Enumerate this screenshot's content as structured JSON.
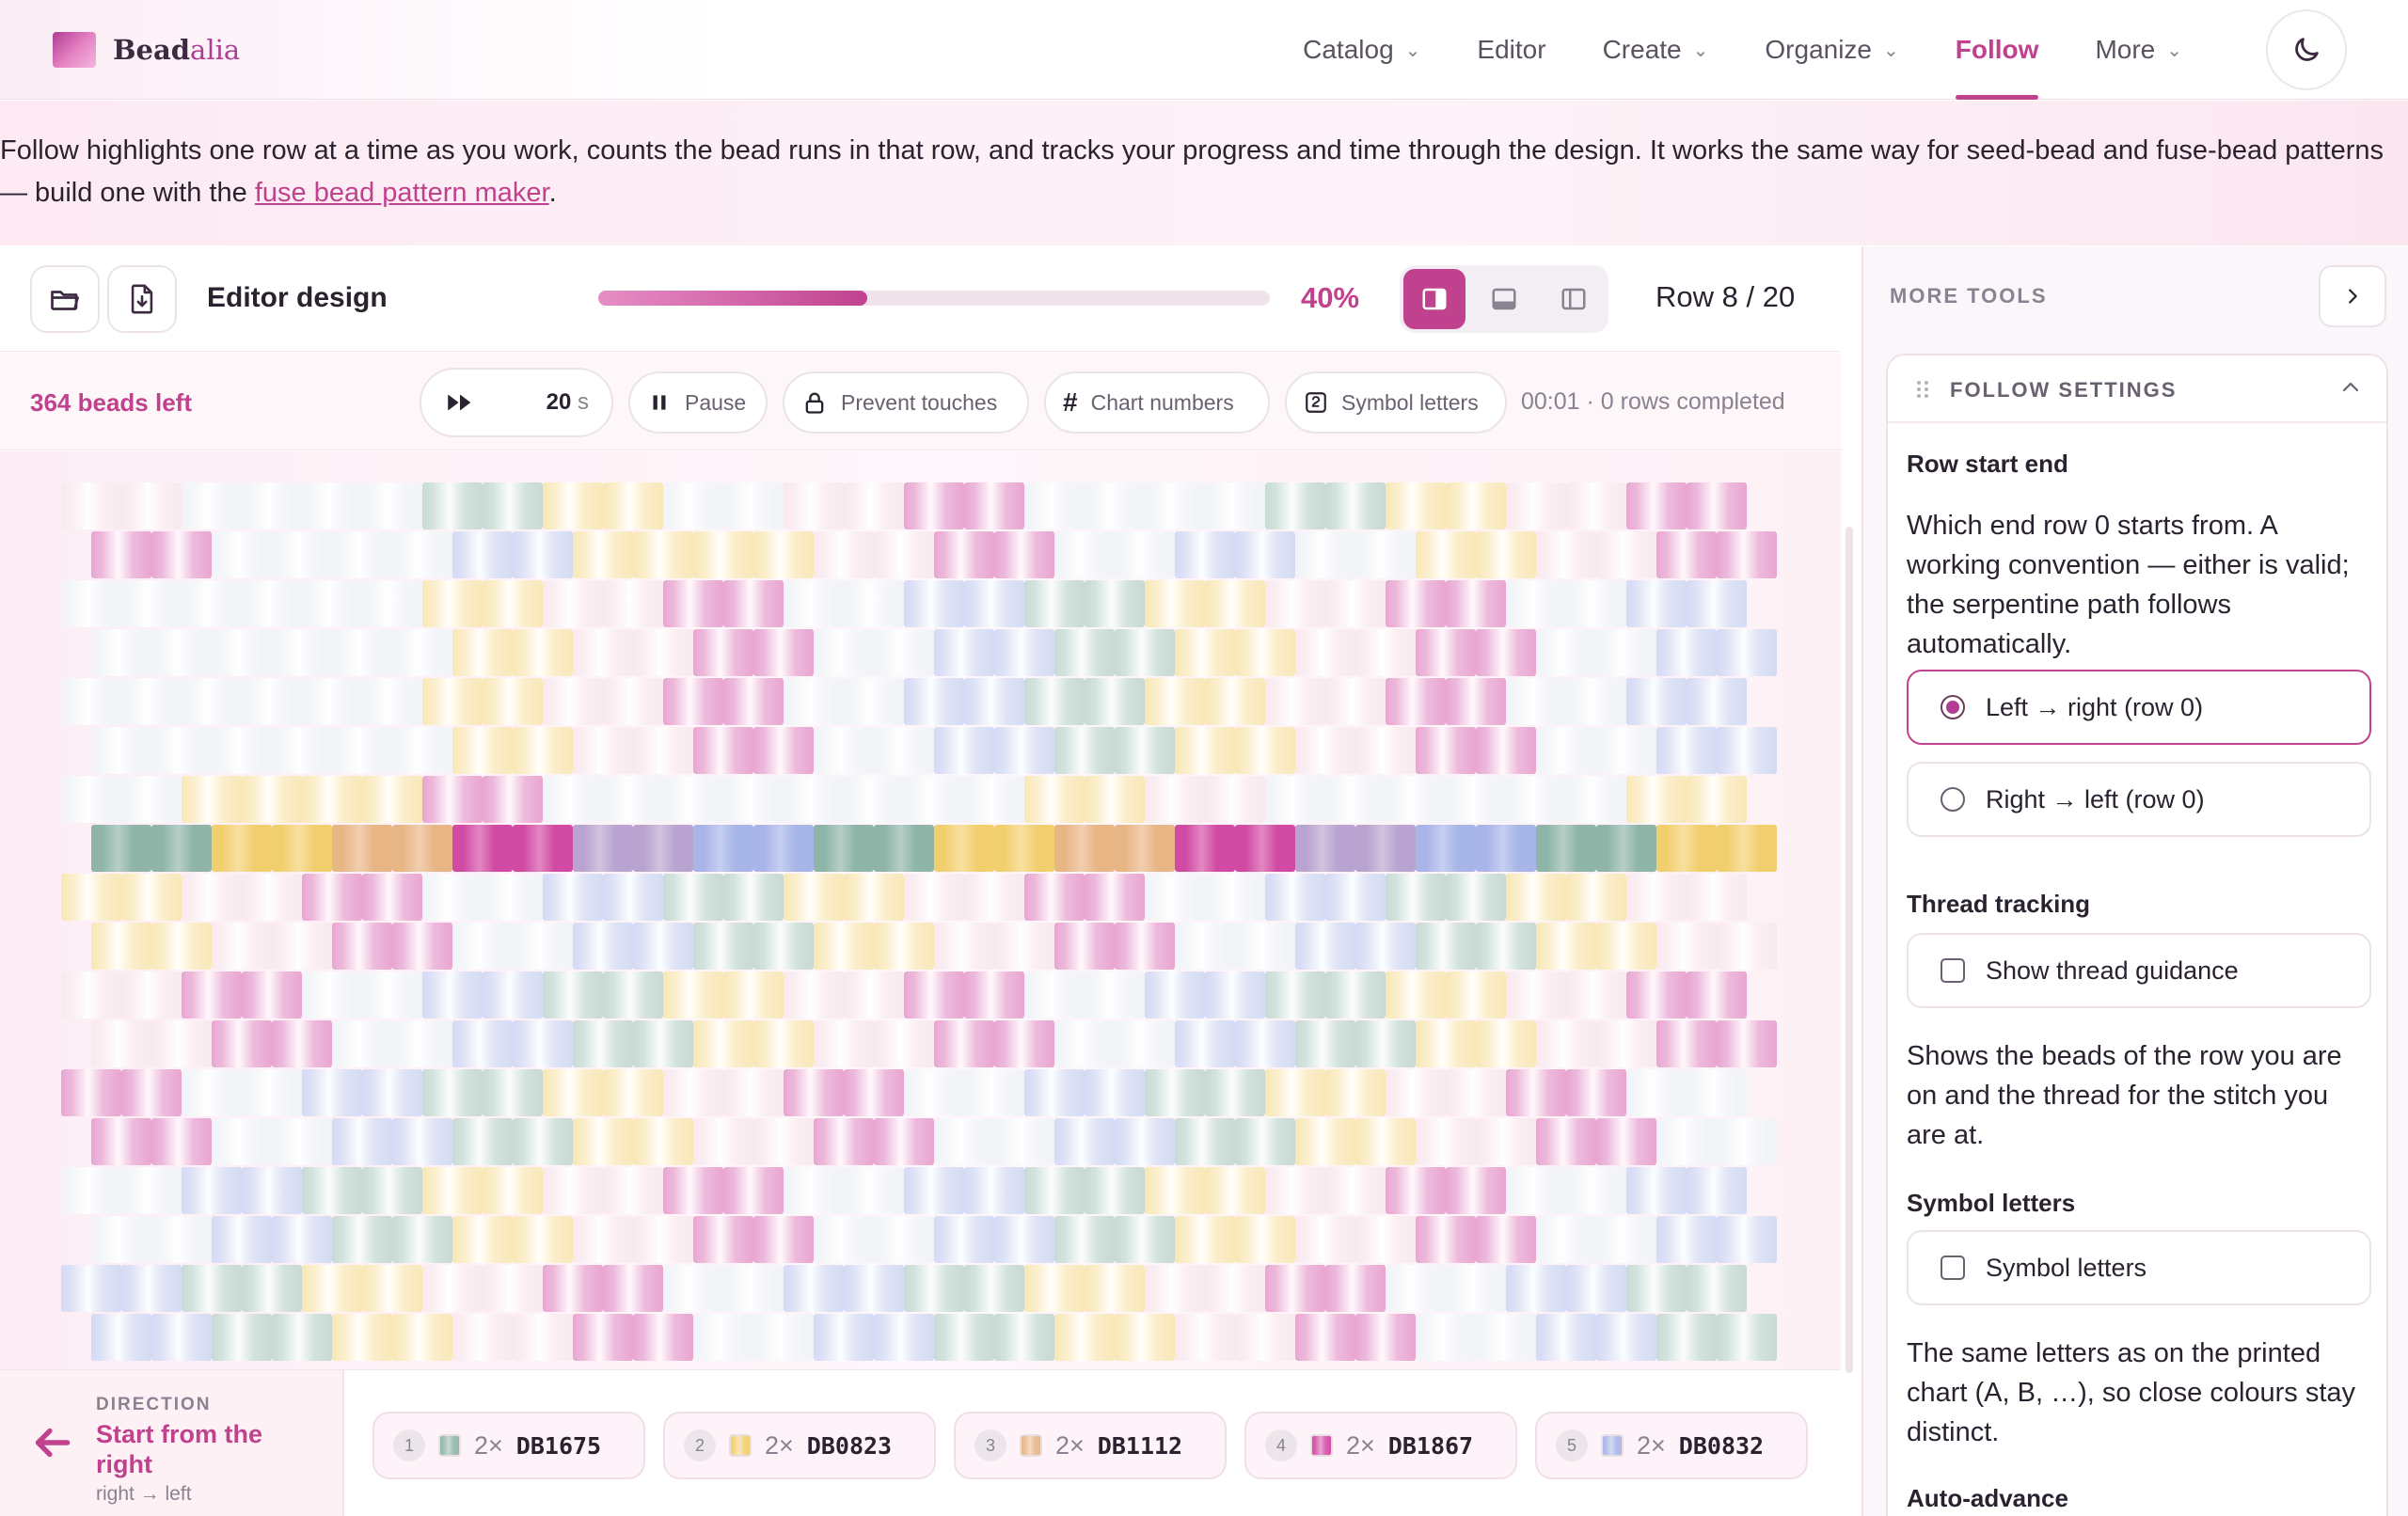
{
  "nav": {
    "brand_bold": "Bead",
    "brand_rest": "alia",
    "items": [
      {
        "label": "Catalog",
        "dropdown": true
      },
      {
        "label": "Editor",
        "dropdown": false
      },
      {
        "label": "Create",
        "dropdown": true
      },
      {
        "label": "Organize",
        "dropdown": true
      },
      {
        "label": "Follow",
        "dropdown": false,
        "active": true
      },
      {
        "label": "More",
        "dropdown": true
      }
    ],
    "theme_icon": "moon-icon"
  },
  "intro": {
    "text_before": "Follow highlights one row at a time as you work, counts the bead runs in that row, and tracks your progress and time through the design. It works the same way for seed-bead and fuse-bead patterns — build one with the ",
    "link_text": "fuse bead pattern maker",
    "text_after": "."
  },
  "toolbar": {
    "open_icon": "folder-open-icon",
    "export_icon": "file-download-icon",
    "design_title": "Editor design",
    "progress": 0.4,
    "progress_label": "40%",
    "row_indicator": "Row 8 / 20"
  },
  "subbar": {
    "beads_left": "364 beads left",
    "play_icon": "fast-forward-icon",
    "interval_value": "20",
    "interval_unit": "s",
    "pause_label": "Pause",
    "prevent_label": "Prevent touches",
    "chart_numbers_label": "Chart numbers",
    "symbol_letters_label": "Symbol letters",
    "session": "00:01 · 0 rows completed"
  },
  "pattern": {
    "palette": [
      "#8fb5a8",
      "#f2cf6e",
      "#e8b585",
      "#d14aa3",
      "#a8b5e8",
      "#b9a3d0",
      "#f2d3dc",
      "#e3e6f0"
    ],
    "active_row_index": 7,
    "active_row_pattern": [
      0,
      0,
      1,
      1,
      2,
      2,
      3,
      3,
      5,
      5,
      4,
      4,
      0,
      0,
      1,
      1,
      2,
      2,
      3,
      3,
      5,
      5,
      4,
      4,
      0,
      0,
      1,
      1
    ],
    "rows": [
      [
        6,
        6,
        7,
        7,
        7,
        7,
        0,
        0,
        1,
        1,
        7,
        7,
        6,
        6,
        3,
        3,
        7,
        7,
        7,
        7,
        0,
        0,
        1,
        1,
        6,
        6,
        3,
        3
      ],
      [
        3,
        3,
        7,
        7,
        7,
        7,
        4,
        4,
        1,
        1,
        1,
        1,
        6,
        6,
        3,
        3,
        7,
        7,
        4,
        4,
        7,
        7,
        1,
        1,
        6,
        6,
        3,
        3
      ],
      [
        7,
        7,
        7,
        7,
        7,
        7,
        1,
        1,
        6,
        6,
        3,
        3,
        7,
        7,
        4,
        4,
        0,
        0,
        1,
        1,
        6,
        6,
        3,
        3,
        7,
        7,
        4,
        4
      ],
      [
        7,
        7,
        7,
        7,
        7,
        7,
        1,
        1,
        6,
        6,
        3,
        3,
        7,
        7,
        4,
        4,
        0,
        0,
        1,
        1,
        6,
        6,
        3,
        3,
        7,
        7,
        4,
        4
      ],
      [
        7,
        7,
        7,
        7,
        7,
        7,
        1,
        1,
        6,
        6,
        3,
        3,
        7,
        7,
        4,
        4,
        0,
        0,
        1,
        1,
        6,
        6,
        3,
        3,
        7,
        7,
        4,
        4
      ],
      [
        7,
        7,
        7,
        7,
        7,
        7,
        1,
        1,
        6,
        6,
        3,
        3,
        7,
        7,
        4,
        4,
        0,
        0,
        1,
        1,
        6,
        6,
        3,
        3,
        7,
        7,
        4,
        4
      ],
      [
        7,
        7,
        1,
        1,
        1,
        1,
        3,
        3,
        7,
        7,
        7,
        7,
        7,
        7,
        7,
        7,
        1,
        1,
        6,
        6,
        7,
        7,
        7,
        7,
        7,
        7,
        1,
        1
      ],
      [
        0,
        0,
        1,
        1,
        2,
        2,
        3,
        3,
        5,
        5,
        4,
        4,
        0,
        0,
        1,
        1,
        2,
        2,
        3,
        3,
        5,
        5,
        4,
        4,
        0,
        0,
        1,
        1
      ],
      [
        1,
        1,
        6,
        6,
        3,
        3,
        7,
        7,
        4,
        4,
        0,
        0,
        1,
        1,
        6,
        6,
        3,
        3,
        7,
        7,
        4,
        4,
        0,
        0,
        1,
        1,
        6,
        6
      ],
      [
        1,
        1,
        6,
        6,
        3,
        3,
        7,
        7,
        4,
        4,
        0,
        0,
        1,
        1,
        6,
        6,
        3,
        3,
        7,
        7,
        4,
        4,
        0,
        0,
        1,
        1,
        6,
        6
      ],
      [
        6,
        6,
        3,
        3,
        7,
        7,
        4,
        4,
        0,
        0,
        1,
        1,
        6,
        6,
        3,
        3,
        7,
        7,
        4,
        4,
        0,
        0,
        1,
        1,
        6,
        6,
        3,
        3
      ],
      [
        6,
        6,
        3,
        3,
        7,
        7,
        4,
        4,
        0,
        0,
        1,
        1,
        6,
        6,
        3,
        3,
        7,
        7,
        4,
        4,
        0,
        0,
        1,
        1,
        6,
        6,
        3,
        3
      ],
      [
        3,
        3,
        7,
        7,
        4,
        4,
        0,
        0,
        1,
        1,
        6,
        6,
        3,
        3,
        7,
        7,
        4,
        4,
        0,
        0,
        1,
        1,
        6,
        6,
        3,
        3,
        7,
        7
      ],
      [
        3,
        3,
        7,
        7,
        4,
        4,
        0,
        0,
        1,
        1,
        6,
        6,
        3,
        3,
        7,
        7,
        4,
        4,
        0,
        0,
        1,
        1,
        6,
        6,
        3,
        3,
        7,
        7
      ],
      [
        7,
        7,
        4,
        4,
        0,
        0,
        1,
        1,
        6,
        6,
        3,
        3,
        7,
        7,
        4,
        4,
        0,
        0,
        1,
        1,
        6,
        6,
        3,
        3,
        7,
        7,
        4,
        4
      ],
      [
        7,
        7,
        4,
        4,
        0,
        0,
        1,
        1,
        6,
        6,
        3,
        3,
        7,
        7,
        4,
        4,
        0,
        0,
        1,
        1,
        6,
        6,
        3,
        3,
        7,
        7,
        4,
        4
      ],
      [
        4,
        4,
        0,
        0,
        1,
        1,
        6,
        6,
        3,
        3,
        7,
        7,
        4,
        4,
        0,
        0,
        1,
        1,
        6,
        6,
        3,
        3,
        7,
        7,
        4,
        4,
        0,
        0
      ],
      [
        4,
        4,
        0,
        0,
        1,
        1,
        6,
        6,
        3,
        3,
        7,
        7,
        4,
        4,
        0,
        0,
        1,
        1,
        6,
        6,
        3,
        3,
        7,
        7,
        4,
        4,
        0,
        0
      ]
    ]
  },
  "direction": {
    "kicker": "DIRECTION",
    "title": "Start from the right",
    "sub": "right → left"
  },
  "runs": [
    {
      "n": "1",
      "count": "2×",
      "code": "DB1675",
      "color": "#8fb5a8"
    },
    {
      "n": "2",
      "count": "2×",
      "code": "DB0823",
      "color": "#f2cf6e"
    },
    {
      "n": "3",
      "count": "2×",
      "code": "DB1112",
      "color": "#e8b585"
    },
    {
      "n": "4",
      "count": "2×",
      "code": "DB1867",
      "color": "#d14aa3"
    },
    {
      "n": "5",
      "count": "2×",
      "code": "DB0832",
      "color": "#a8b5e8"
    }
  ],
  "sidebar": {
    "more_tools": "MORE TOOLS",
    "panel_title": "FOLLOW SETTINGS",
    "row_start_label": "Row start end",
    "row_start_text": "Which end row 0 starts from. A working convention — either is valid; the serpentine path follows automatically.",
    "opt_left": "Left → right (row 0)",
    "opt_right": "Right → left (row 0)",
    "thread_label": "Thread tracking",
    "thread_opt": "Show thread guidance",
    "thread_text": "Shows the beads of the row you are on and the thread for the stitch you are at.",
    "symbol_label": "Symbol letters",
    "symbol_opt": "Symbol letters",
    "symbol_text": "The same letters as on the printed chart (A, B, …), so close colours stay distinct.",
    "auto_label": "Auto-advance"
  }
}
